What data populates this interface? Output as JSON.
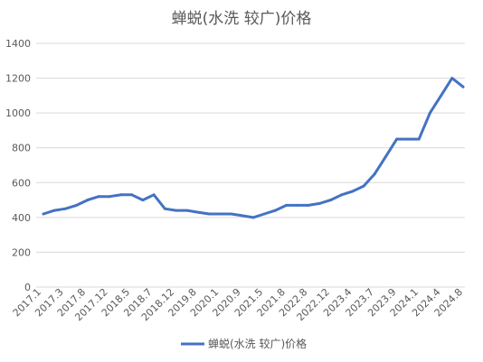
{
  "chart_data": {
    "type": "line",
    "title": "蝉蜕(水洗 较广)价格",
    "xlabel": "",
    "ylabel": "",
    "ylim": [
      0,
      1400
    ],
    "yticks": [
      0,
      200,
      400,
      600,
      800,
      1000,
      1200,
      1400
    ],
    "grid": true,
    "legend_position": "bottom",
    "series_color": "#4472c4",
    "x_tick_labels": [
      "2017.1",
      "2017.3",
      "2017.8",
      "2017.12",
      "2018.5",
      "2018.7",
      "2018.12",
      "2019.8",
      "2020.1",
      "2020.9",
      "2021.5",
      "2021.8",
      "2022.8",
      "2022.12",
      "2023.4",
      "2023.7",
      "2023.9",
      "2024.1",
      "2024.4",
      "2024.8"
    ],
    "series": [
      {
        "name": "蝉蜕(水洗 较广)价格",
        "values": [
          420,
          440,
          450,
          470,
          500,
          520,
          520,
          530,
          530,
          500,
          530,
          450,
          440,
          440,
          430,
          420,
          420,
          420,
          410,
          400,
          420,
          440,
          470,
          470,
          470,
          480,
          500,
          530,
          550,
          580,
          650,
          750,
          850,
          850,
          850,
          1000,
          1100,
          1200,
          1150
        ]
      }
    ]
  }
}
